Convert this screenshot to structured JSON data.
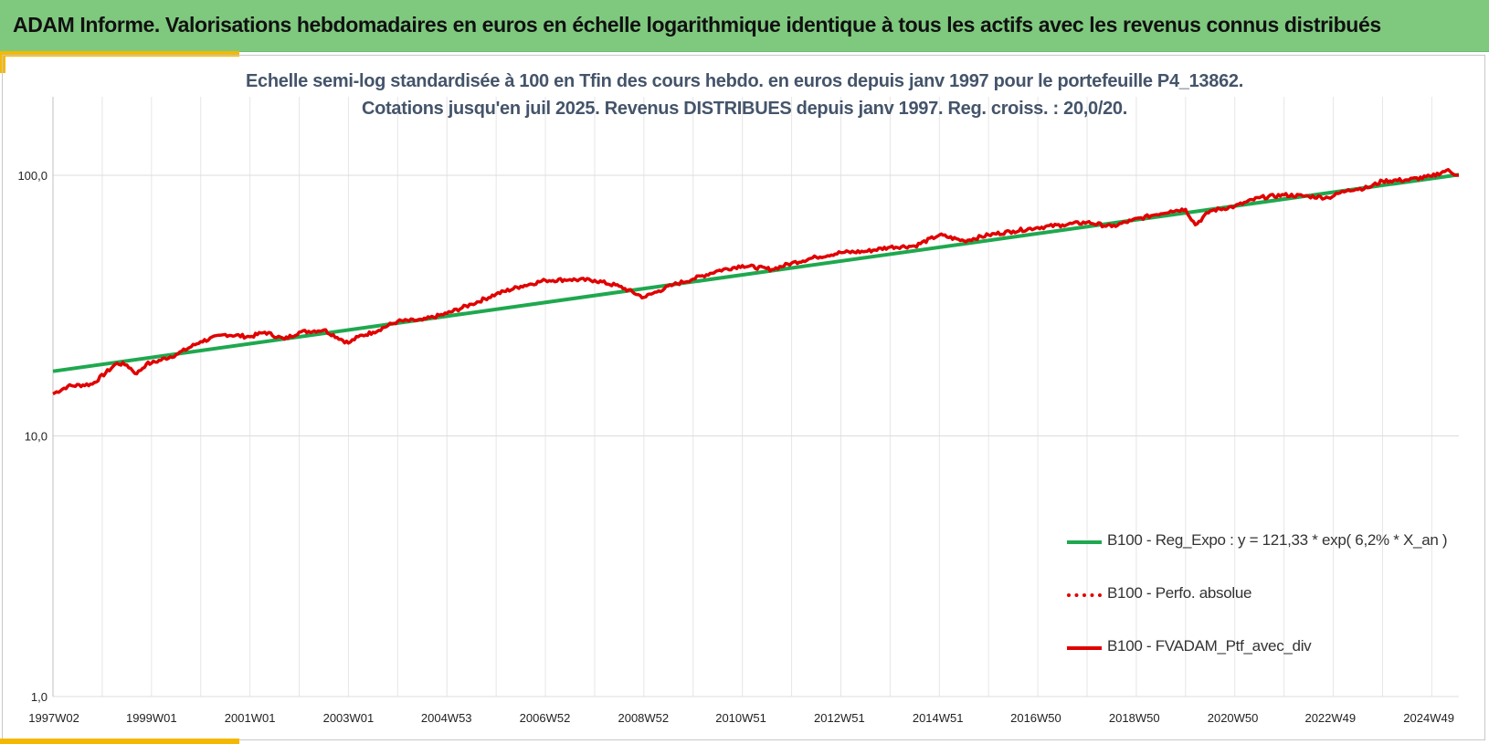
{
  "header": {
    "title": "ADAM Informe. Valorisations hebdomadaires en euros en échelle logarithmique identique à tous les actifs avec les revenus connus distribués"
  },
  "chart_data": {
    "type": "line",
    "title": "Echelle semi-log standardisée à 100 en Tfin des cours hebdo.  en euros depuis janv 1997 pour le portefeuille P4_13862.",
    "subtitle": "Cotations jusqu'en juil 2025. Revenus DISTRIBUES depuis janv 1997. Reg. croiss. : 20,0/20.",
    "y_scale": "log",
    "ylim": [
      1,
      200
    ],
    "y_ticks": [
      {
        "value": 1,
        "label": "1,0"
      },
      {
        "value": 10,
        "label": "10,0"
      },
      {
        "value": 100,
        "label": "100,0"
      }
    ],
    "xlim": [
      1997.0,
      2025.55
    ],
    "x_ticks": [
      {
        "value": 1997.02,
        "label": "1997W02"
      },
      {
        "value": 1999.0,
        "label": "1999W01"
      },
      {
        "value": 2001.0,
        "label": "2001W01"
      },
      {
        "value": 2003.0,
        "label": "2003W01"
      },
      {
        "value": 2004.99,
        "label": "2004W53"
      },
      {
        "value": 2006.99,
        "label": "2006W52"
      },
      {
        "value": 2008.99,
        "label": "2008W52"
      },
      {
        "value": 2010.97,
        "label": "2010W51"
      },
      {
        "value": 2012.97,
        "label": "2012W51"
      },
      {
        "value": 2014.97,
        "label": "2014W51"
      },
      {
        "value": 2016.96,
        "label": "2016W50"
      },
      {
        "value": 2018.96,
        "label": "2018W50"
      },
      {
        "value": 2020.96,
        "label": "2020W50"
      },
      {
        "value": 2022.94,
        "label": "2022W49"
      },
      {
        "value": 2024.94,
        "label": "2024W49"
      }
    ],
    "grid": true,
    "legend_position": "bottom-right",
    "series": [
      {
        "name": "B100 - Reg_Expo : y = 121,33 * exp( 6,2% *  X_an )",
        "color": "#1fa84f",
        "style": "solid",
        "x": [
          1997.0,
          2025.55
        ],
        "y": [
          17.7,
          100.5
        ]
      },
      {
        "name": "B100 - Perfo. absolue",
        "color": "#e00000",
        "style": "dotted",
        "x": [],
        "y": []
      },
      {
        "name": "B100 - FVADAM_Ptf_avec_div",
        "color": "#e00000",
        "style": "solid",
        "x": [
          1997.0,
          1997.3,
          1997.8,
          1998.3,
          1998.5,
          1998.7,
          1998.9,
          1999.0,
          1999.5,
          2000.0,
          2000.5,
          2001.0,
          2001.3,
          2001.7,
          2002.0,
          2002.5,
          2003.0,
          2003.2,
          2003.5,
          2004.0,
          2004.5,
          2005.0,
          2005.5,
          2006.0,
          2006.5,
          2007.0,
          2007.5,
          2008.0,
          2008.5,
          2009.0,
          2009.3,
          2009.6,
          2010.0,
          2010.5,
          2011.0,
          2011.6,
          2012.0,
          2012.5,
          2013.0,
          2013.5,
          2014.0,
          2014.5,
          2015.0,
          2015.5,
          2016.0,
          2016.5,
          2017.0,
          2017.5,
          2018.0,
          2018.5,
          2018.9,
          2019.3,
          2019.7,
          2020.0,
          2020.2,
          2020.5,
          2021.0,
          2021.5,
          2022.0,
          2022.5,
          2022.9,
          2023.3,
          2023.7,
          2024.0,
          2024.5,
          2025.0,
          2025.3,
          2025.55
        ],
        "y": [
          14.5,
          15.5,
          15.8,
          19.0,
          18.7,
          17.3,
          18.9,
          19.0,
          20.5,
          23.0,
          24.5,
          24.0,
          25.0,
          23.5,
          25.0,
          25.5,
          22.7,
          24.0,
          25.0,
          27.5,
          27.8,
          29.5,
          32.0,
          35.0,
          37.5,
          39.5,
          39.8,
          39.5,
          37.5,
          34.0,
          36.0,
          38.0,
          40.0,
          43.0,
          45.0,
          43.5,
          46.0,
          48.5,
          50.5,
          51.0,
          53.0,
          53.5,
          59.0,
          56.0,
          59.0,
          61.0,
          63.0,
          64.5,
          66.0,
          63.5,
          67.0,
          70.0,
          73.0,
          74.0,
          64.5,
          73.0,
          76.0,
          82.0,
          84.0,
          83.0,
          82.0,
          88.0,
          89.5,
          95.0,
          96.0,
          99.0,
          104.5,
          100.0
        ]
      }
    ]
  }
}
